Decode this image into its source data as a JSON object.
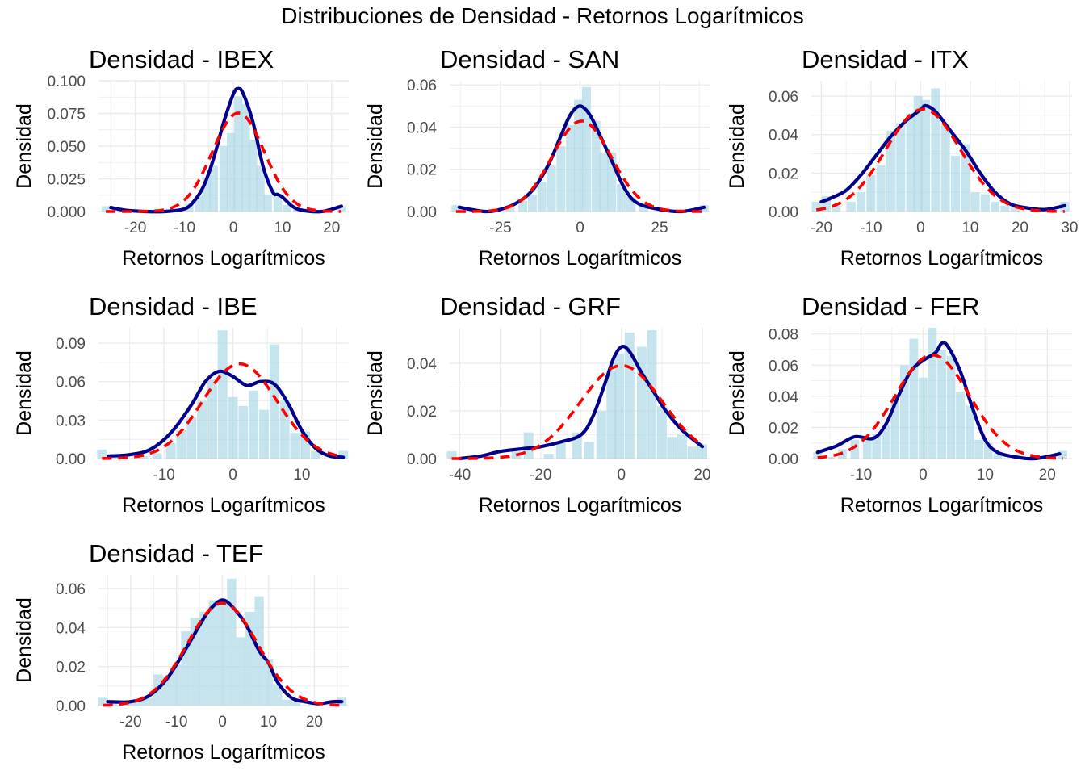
{
  "figure": {
    "title": "Distribuciones de Densidad - Retornos Logarítmicos"
  },
  "colors": {
    "histogram_fill": "#ADD8E6",
    "kernel_density": "#00008B",
    "normal_density": "#FF0000",
    "grid": "#EBEBEB",
    "tick_text": "#4D4D4D"
  },
  "chart_data": [
    {
      "type": "area",
      "title": "Densidad - IBEX",
      "xlabel": "Retornos Logarítmicos",
      "ylabel": "Densidad",
      "xlim": [
        -27.5,
        23.5
      ],
      "ylim": [
        0,
        0.1
      ],
      "xticks": [
        -20,
        -10,
        0,
        10,
        20
      ],
      "yticks": [
        0,
        0.025,
        0.05,
        0.075,
        0.1
      ],
      "ytick_labels": [
        "0.000",
        "0.025",
        "0.050",
        "0.075",
        "0.100"
      ],
      "bin_width": 1.7,
      "bins": [
        [
          -26,
          0.004
        ],
        [
          -21,
          0.001
        ],
        [
          -13,
          0.001
        ],
        [
          -11,
          0.002
        ],
        [
          -9,
          0.006
        ],
        [
          -7,
          0.012
        ],
        [
          -5.5,
          0.026
        ],
        [
          -4,
          0.035
        ],
        [
          -2,
          0.05
        ],
        [
          -0.5,
          0.06
        ],
        [
          1,
          0.088
        ],
        [
          2.5,
          0.082
        ],
        [
          4,
          0.055
        ],
        [
          5.5,
          0.035
        ],
        [
          7,
          0.013
        ],
        [
          9,
          0.011
        ],
        [
          11,
          0.005
        ],
        [
          13,
          0.002
        ],
        [
          22,
          0.004
        ]
      ],
      "kde": [
        [
          -25,
          0.003
        ],
        [
          -22,
          0.001
        ],
        [
          -18,
          0.0
        ],
        [
          -14,
          0.0
        ],
        [
          -10,
          0.002
        ],
        [
          -8,
          0.008
        ],
        [
          -6,
          0.02
        ],
        [
          -4,
          0.041
        ],
        [
          -2,
          0.068
        ],
        [
          0,
          0.09
        ],
        [
          1,
          0.094
        ],
        [
          2,
          0.09
        ],
        [
          4,
          0.068
        ],
        [
          6,
          0.035
        ],
        [
          8,
          0.015
        ],
        [
          9,
          0.013
        ],
        [
          10,
          0.011
        ],
        [
          12,
          0.004
        ],
        [
          14,
          0.001
        ],
        [
          18,
          0.0
        ],
        [
          22,
          0.004
        ]
      ],
      "normal": {
        "mean": 1.0,
        "sd": 5.3
      }
    },
    {
      "type": "area",
      "title": "Densidad - SAN",
      "xlabel": "Retornos Logarítmicos",
      "ylabel": "Densidad",
      "xlim": [
        -41,
        41
      ],
      "ylim": [
        0,
        0.062
      ],
      "xticks": [
        -25,
        0,
        25
      ],
      "yticks": [
        0,
        0.02,
        0.04,
        0.06
      ],
      "ytick_labels": [
        "0.00",
        "0.02",
        "0.04",
        "0.06"
      ],
      "bin_width": 2.8,
      "bins": [
        [
          -39,
          0.003
        ],
        [
          -27,
          0.001
        ],
        [
          -22,
          0.002
        ],
        [
          -18,
          0.005
        ],
        [
          -15,
          0.008
        ],
        [
          -12,
          0.014
        ],
        [
          -9,
          0.022
        ],
        [
          -6,
          0.031
        ],
        [
          -3,
          0.041
        ],
        [
          -0.5,
          0.053
        ],
        [
          2,
          0.059
        ],
        [
          5,
          0.043
        ],
        [
          7.5,
          0.028
        ],
        [
          10,
          0.028
        ],
        [
          13,
          0.013
        ],
        [
          16,
          0.007
        ],
        [
          20,
          0.003
        ],
        [
          39,
          0.003
        ]
      ],
      "kde": [
        [
          -38,
          0.002
        ],
        [
          -30,
          0.0
        ],
        [
          -25,
          0.001
        ],
        [
          -20,
          0.004
        ],
        [
          -15,
          0.01
        ],
        [
          -10,
          0.022
        ],
        [
          -6,
          0.036
        ],
        [
          -3,
          0.046
        ],
        [
          0,
          0.05
        ],
        [
          3,
          0.046
        ],
        [
          6,
          0.037
        ],
        [
          10,
          0.024
        ],
        [
          14,
          0.011
        ],
        [
          18,
          0.004
        ],
        [
          25,
          0.001
        ],
        [
          32,
          0.0
        ],
        [
          39,
          0.002
        ]
      ],
      "normal": {
        "mean": 0.5,
        "sd": 9.3
      }
    },
    {
      "type": "area",
      "title": "Densidad - ITX",
      "xlabel": "Retornos Logarítmicos",
      "ylabel": "Densidad",
      "xlim": [
        -22,
        30.5
      ],
      "ylim": [
        0,
        0.068
      ],
      "xticks": [
        -20,
        -10,
        0,
        10,
        20,
        30
      ],
      "yticks": [
        0,
        0.02,
        0.04,
        0.06
      ],
      "ytick_labels": [
        "0.00",
        "0.02",
        "0.04",
        "0.06"
      ],
      "bin_width": 1.8,
      "bins": [
        [
          -21,
          0.005
        ],
        [
          -19,
          0.008
        ],
        [
          -17,
          0.003
        ],
        [
          -14,
          0.005
        ],
        [
          -12,
          0.01
        ],
        [
          -10,
          0.019
        ],
        [
          -8,
          0.024
        ],
        [
          -6,
          0.042
        ],
        [
          -4,
          0.046
        ],
        [
          -2,
          0.051
        ],
        [
          -0.5,
          0.06
        ],
        [
          1,
          0.058
        ],
        [
          3,
          0.064
        ],
        [
          5,
          0.045
        ],
        [
          7,
          0.029
        ],
        [
          9,
          0.035
        ],
        [
          11,
          0.01
        ],
        [
          13,
          0.009
        ],
        [
          15,
          0.005
        ],
        [
          17,
          0.003
        ],
        [
          19,
          0.003
        ],
        [
          29,
          0.005
        ]
      ],
      "kde": [
        [
          -20,
          0.005
        ],
        [
          -18,
          0.007
        ],
        [
          -15,
          0.011
        ],
        [
          -12,
          0.019
        ],
        [
          -9,
          0.029
        ],
        [
          -6,
          0.039
        ],
        [
          -3,
          0.047
        ],
        [
          0,
          0.053
        ],
        [
          1,
          0.055
        ],
        [
          3,
          0.052
        ],
        [
          6,
          0.042
        ],
        [
          9,
          0.032
        ],
        [
          12,
          0.02
        ],
        [
          15,
          0.01
        ],
        [
          18,
          0.004
        ],
        [
          21,
          0.002
        ],
        [
          25,
          0.001
        ],
        [
          29,
          0.003
        ]
      ],
      "normal": {
        "mean": 0.5,
        "sd": 7.5
      }
    },
    {
      "type": "area",
      "title": "Densidad - IBE",
      "xlabel": "Retornos Logarítmicos",
      "ylabel": "Densidad",
      "xlim": [
        -19.5,
        16.8
      ],
      "ylim": [
        0,
        0.102
      ],
      "xticks": [
        -20,
        -10,
        0,
        10
      ],
      "yticks": [
        0,
        0.03,
        0.06,
        0.09
      ],
      "ytick_labels": [
        "0.00",
        "0.03",
        "0.06",
        "0.09"
      ],
      "bin_width": 1.4,
      "bins": [
        [
          -19,
          0.007
        ],
        [
          -17,
          0.001
        ],
        [
          -13,
          0.002
        ],
        [
          -11,
          0.004
        ],
        [
          -9,
          0.012
        ],
        [
          -7.5,
          0.022
        ],
        [
          -6,
          0.032
        ],
        [
          -4.5,
          0.045
        ],
        [
          -3,
          0.062
        ],
        [
          -1.5,
          0.1
        ],
        [
          0,
          0.048
        ],
        [
          1.5,
          0.041
        ],
        [
          3,
          0.053
        ],
        [
          4.5,
          0.038
        ],
        [
          6,
          0.089
        ],
        [
          7.5,
          0.045
        ],
        [
          9,
          0.02
        ],
        [
          10.5,
          0.021
        ],
        [
          12,
          0.006
        ],
        [
          16,
          0.006
        ]
      ],
      "kde": [
        [
          -18,
          0.002
        ],
        [
          -15,
          0.003
        ],
        [
          -12,
          0.007
        ],
        [
          -9,
          0.02
        ],
        [
          -6,
          0.042
        ],
        [
          -4,
          0.06
        ],
        [
          -2,
          0.068
        ],
        [
          0,
          0.064
        ],
        [
          2,
          0.057
        ],
        [
          4,
          0.06
        ],
        [
          6,
          0.058
        ],
        [
          8,
          0.043
        ],
        [
          10,
          0.022
        ],
        [
          12,
          0.008
        ],
        [
          14,
          0.002
        ],
        [
          16,
          0.001
        ]
      ],
      "normal": {
        "mean": 1.0,
        "sd": 5.4
      }
    },
    {
      "type": "area",
      "title": "Densidad - GRF",
      "xlabel": "Retornos Logarítmicos",
      "ylabel": "Densidad",
      "xlim": [
        -42.5,
        22
      ],
      "ylim": [
        0,
        0.055
      ],
      "xticks": [
        -40,
        -20,
        0,
        20
      ],
      "yticks": [
        0,
        0.02,
        0.04
      ],
      "ytick_labels": [
        "0.00",
        "0.02",
        "0.04"
      ],
      "bin_width": 2.4,
      "bins": [
        [
          -42,
          0.003
        ],
        [
          -38,
          0.001
        ],
        [
          -26,
          0.003
        ],
        [
          -23,
          0.011
        ],
        [
          -18,
          0.002
        ],
        [
          -15,
          0.007
        ],
        [
          -11,
          0.011
        ],
        [
          -8,
          0.007
        ],
        [
          -5,
          0.02
        ],
        [
          -2.5,
          0.037
        ],
        [
          -0.5,
          0.044
        ],
        [
          2,
          0.053
        ],
        [
          5,
          0.047
        ],
        [
          7.5,
          0.054
        ],
        [
          10,
          0.022
        ],
        [
          12.5,
          0.009
        ],
        [
          15,
          0.01
        ],
        [
          17.5,
          0.005
        ],
        [
          20,
          0.006
        ]
      ],
      "kde": [
        [
          -40,
          0.0
        ],
        [
          -35,
          0.001
        ],
        [
          -30,
          0.003
        ],
        [
          -25,
          0.004
        ],
        [
          -20,
          0.005
        ],
        [
          -15,
          0.007
        ],
        [
          -10,
          0.01
        ],
        [
          -7,
          0.018
        ],
        [
          -4,
          0.032
        ],
        [
          -2,
          0.042
        ],
        [
          0,
          0.047
        ],
        [
          2,
          0.045
        ],
        [
          5,
          0.036
        ],
        [
          8,
          0.028
        ],
        [
          11,
          0.02
        ],
        [
          15,
          0.012
        ],
        [
          20,
          0.005
        ]
      ],
      "normal": {
        "mean": 0.0,
        "sd": 10.2
      }
    },
    {
      "type": "area",
      "title": "Densidad - FER",
      "xlabel": "Retornos Logarítmicos",
      "ylabel": "Densidad",
      "xlim": [
        -18,
        24
      ],
      "ylim": [
        0,
        0.084
      ],
      "xticks": [
        -10,
        0,
        10,
        20
      ],
      "yticks": [
        0,
        0.02,
        0.04,
        0.06,
        0.08
      ],
      "ytick_labels": [
        "0.00",
        "0.02",
        "0.04",
        "0.06",
        "0.08"
      ],
      "bin_width": 1.4,
      "bins": [
        [
          -17,
          0.004
        ],
        [
          -15,
          0.001
        ],
        [
          -13,
          0.006
        ],
        [
          -11,
          0.012
        ],
        [
          -9,
          0.014
        ],
        [
          -7.5,
          0.016
        ],
        [
          -6,
          0.022
        ],
        [
          -4.5,
          0.038
        ],
        [
          -3,
          0.06
        ],
        [
          -1.5,
          0.077
        ],
        [
          0,
          0.052
        ],
        [
          1.5,
          0.084
        ],
        [
          3,
          0.07
        ],
        [
          4.5,
          0.066
        ],
        [
          6,
          0.043
        ],
        [
          7.5,
          0.034
        ],
        [
          9,
          0.012
        ],
        [
          10.5,
          0.01
        ],
        [
          12,
          0.003
        ],
        [
          22.5,
          0.005
        ]
      ],
      "kde": [
        [
          -17,
          0.004
        ],
        [
          -14,
          0.008
        ],
        [
          -11,
          0.014
        ],
        [
          -8,
          0.013
        ],
        [
          -6,
          0.022
        ],
        [
          -4,
          0.04
        ],
        [
          -2,
          0.056
        ],
        [
          0,
          0.063
        ],
        [
          2,
          0.068
        ],
        [
          3,
          0.074
        ],
        [
          4,
          0.072
        ],
        [
          6,
          0.056
        ],
        [
          8,
          0.032
        ],
        [
          10,
          0.012
        ],
        [
          12,
          0.004
        ],
        [
          15,
          0.001
        ],
        [
          18,
          0.0
        ],
        [
          22,
          0.003
        ]
      ],
      "normal": {
        "mean": 1.5,
        "sd": 6.0
      }
    },
    {
      "type": "area",
      "title": "Densidad - TEF",
      "xlabel": "Retornos Logarítmicos",
      "ylabel": "Densidad",
      "xlim": [
        -27,
        27.5
      ],
      "ylim": [
        0,
        0.067
      ],
      "xticks": [
        -20,
        -10,
        0,
        10,
        20
      ],
      "yticks": [
        0,
        0.02,
        0.04,
        0.06
      ],
      "ytick_labels": [
        "0.00",
        "0.02",
        "0.04",
        "0.06"
      ],
      "bin_width": 2.0,
      "bins": [
        [
          -26,
          0.004
        ],
        [
          -24,
          0.001
        ],
        [
          -20,
          0.002
        ],
        [
          -18,
          0.003
        ],
        [
          -16,
          0.004
        ],
        [
          -14,
          0.016
        ],
        [
          -12,
          0.015
        ],
        [
          -10,
          0.021
        ],
        [
          -8,
          0.038
        ],
        [
          -6,
          0.045
        ],
        [
          -4,
          0.048
        ],
        [
          -2,
          0.054
        ],
        [
          0,
          0.053
        ],
        [
          2,
          0.065
        ],
        [
          4,
          0.035
        ],
        [
          6,
          0.048
        ],
        [
          8,
          0.056
        ],
        [
          10,
          0.024
        ],
        [
          12,
          0.011
        ],
        [
          14,
          0.003
        ],
        [
          16,
          0.002
        ],
        [
          26,
          0.004
        ]
      ],
      "kde": [
        [
          -25,
          0.002
        ],
        [
          -20,
          0.002
        ],
        [
          -16,
          0.005
        ],
        [
          -12,
          0.014
        ],
        [
          -8,
          0.029
        ],
        [
          -4,
          0.045
        ],
        [
          -2,
          0.051
        ],
        [
          0,
          0.054
        ],
        [
          2,
          0.051
        ],
        [
          5,
          0.042
        ],
        [
          8,
          0.028
        ],
        [
          10,
          0.022
        ],
        [
          12,
          0.012
        ],
        [
          15,
          0.004
        ],
        [
          18,
          0.002
        ],
        [
          21,
          0.001
        ],
        [
          24,
          0.002
        ],
        [
          26,
          0.002
        ]
      ],
      "normal": {
        "mean": 0.0,
        "sd": 7.6
      }
    }
  ]
}
